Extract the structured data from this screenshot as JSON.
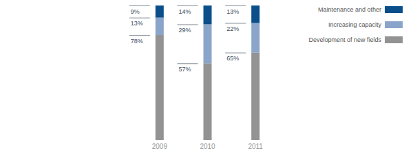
{
  "chart_data": {
    "type": "bar",
    "stacked": true,
    "data_labels": true,
    "tick_labels": "x",
    "grid": false,
    "legend": "top-right",
    "categories": [
      "2009",
      "2010",
      "2011"
    ],
    "ylim": [
      0,
      100
    ],
    "series": [
      {
        "name": "Development of new fields",
        "color": "#939393",
        "values": [
          78,
          57,
          65
        ],
        "value_labels": [
          "78%",
          "57%",
          "65%"
        ]
      },
      {
        "name": "Increasing capacity",
        "color": "#8aa5c9",
        "values": [
          13,
          29,
          22
        ],
        "value_labels": [
          "13%",
          "29%",
          "22%"
        ]
      },
      {
        "name": "Maintenance and other",
        "color": "#0b4f8a",
        "values": [
          9,
          14,
          13
        ],
        "value_labels": [
          "9%",
          "14%",
          "13%"
        ]
      }
    ]
  }
}
